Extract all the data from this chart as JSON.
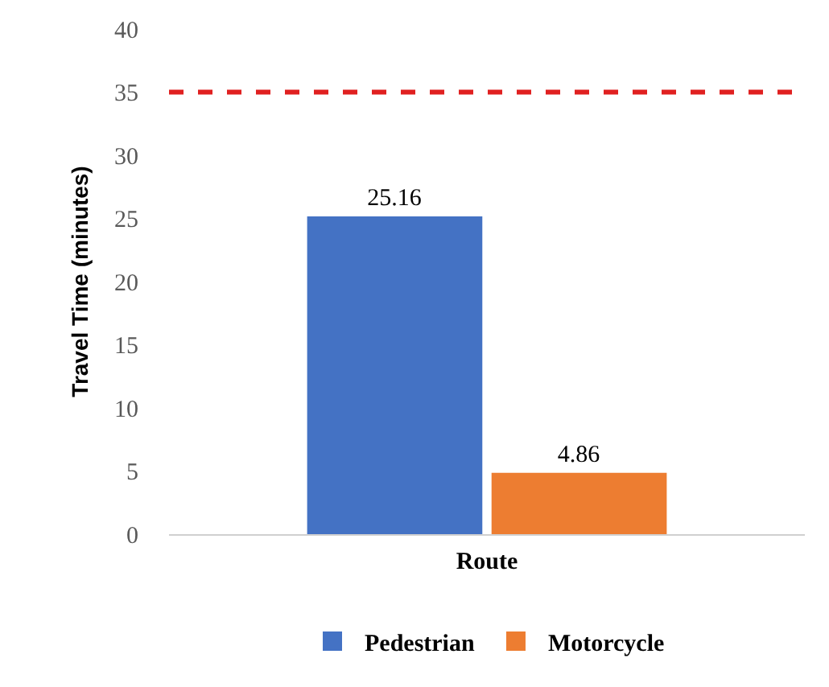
{
  "chart_data": {
    "type": "bar",
    "xlabel": "Route",
    "ylabel": "Travel Time (minutes)",
    "categories": [
      null
    ],
    "series": [
      {
        "name": "Pedestrian",
        "color": "#4472c4",
        "values": [
          25.16
        ]
      },
      {
        "name": "Motorcycle",
        "color": "#ed7d31",
        "values": [
          4.86
        ]
      }
    ],
    "ylim": [
      0,
      40
    ],
    "yticks": [
      0,
      5,
      10,
      15,
      20,
      25,
      30,
      35,
      40
    ],
    "grid": false,
    "legend": "bottom",
    "data_labels": true,
    "ref_lines": [
      {
        "axis": "y",
        "value": 35,
        "color": "#e02020",
        "line_style": "dashed"
      }
    ]
  }
}
